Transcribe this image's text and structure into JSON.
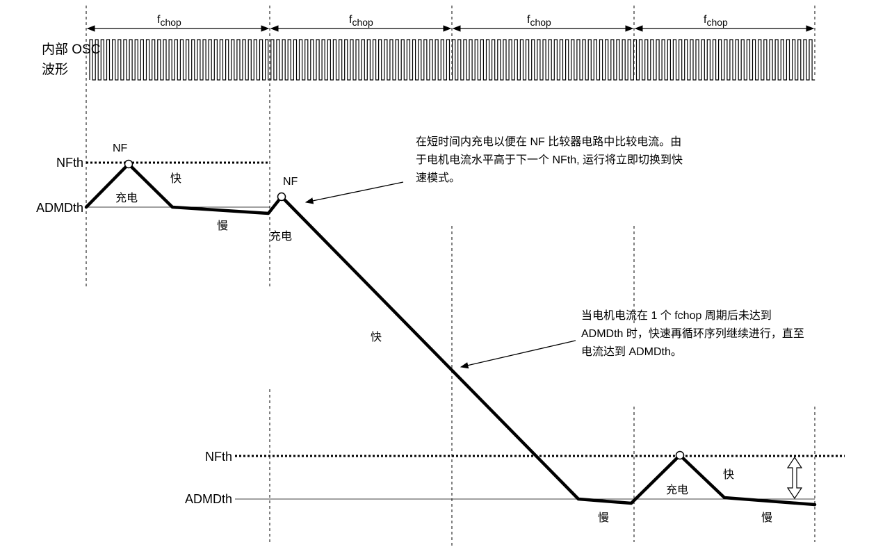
{
  "fchop": {
    "main": "f",
    "sub": "chop"
  },
  "osc": {
    "line1": "内部 OSC",
    "line2": "波形"
  },
  "levels": {
    "nfth": "NFth",
    "admdth": "ADMDth"
  },
  "labels": {
    "nf": "NF",
    "charge": "充电",
    "fast": "快",
    "slow": "慢"
  },
  "note1": [
    "在短时间内充电以便在 NF 比较器电路中比较电流。由",
    "于电机电流水平高于下一个 NFth, 运行将立即切换到快",
    "速模式。"
  ],
  "note2": [
    "当电机电流在 1 个 fchop 周期后未达到",
    "ADMDth 时，快速再循环序列继续进行，直至",
    "电流达到 ADMDth。"
  ]
}
